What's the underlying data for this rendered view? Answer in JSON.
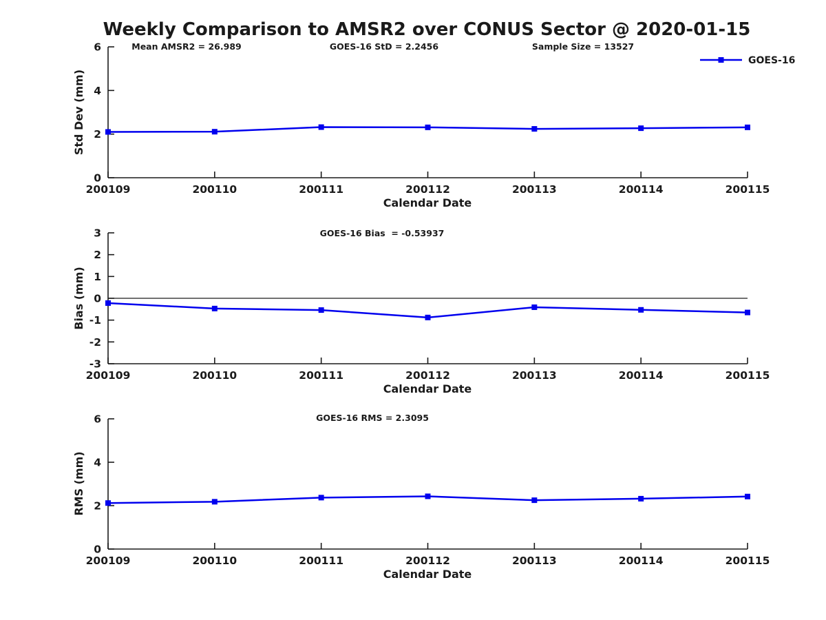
{
  "title": "Weekly Comparison to AMSR2 over CONUS Sector @ 2020-01-15",
  "legend": {
    "label": "GOES-16",
    "color": "#0000EE",
    "position": "top-right-outside"
  },
  "chart_data": [
    {
      "type": "line",
      "annotations": [
        {
          "text": "Mean AMSR2 = 26.989"
        },
        {
          "text": "GOES-16 StD = 2.2456"
        },
        {
          "text": "Sample Size = 13527"
        }
      ],
      "categories": [
        "200109",
        "200110",
        "200111",
        "200112",
        "200113",
        "200114",
        "200115"
      ],
      "series": [
        {
          "name": "GOES-16",
          "color": "#0000EE",
          "marker": "square",
          "values": [
            2.1,
            2.11,
            2.32,
            2.31,
            2.24,
            2.27,
            2.31
          ]
        }
      ],
      "xlabel": "Calendar Date",
      "ylabel": "Std Dev (mm)",
      "ylim": [
        0,
        6
      ],
      "yticks": [
        0,
        2,
        4,
        6
      ],
      "grid": false,
      "zero_line": false,
      "legend_position": "top-right-outside"
    },
    {
      "type": "line",
      "annotations": [
        {
          "text": "GOES-16 Bias  = -0.53937"
        }
      ],
      "categories": [
        "200109",
        "200110",
        "200111",
        "200112",
        "200113",
        "200114",
        "200115"
      ],
      "series": [
        {
          "name": "GOES-16",
          "color": "#0000EE",
          "marker": "square",
          "values": [
            -0.22,
            -0.47,
            -0.54,
            -0.88,
            -0.41,
            -0.53,
            -0.65
          ]
        }
      ],
      "xlabel": "Calendar Date",
      "ylabel": "Bias (mm)",
      "ylim": [
        -3,
        3
      ],
      "yticks": [
        -3,
        -2,
        -1,
        0,
        1,
        2,
        3
      ],
      "grid": false,
      "zero_line": true,
      "legend_position": "none"
    },
    {
      "type": "line",
      "annotations": [
        {
          "text": "GOES-16 RMS = 2.3095"
        }
      ],
      "categories": [
        "200109",
        "200110",
        "200111",
        "200112",
        "200113",
        "200114",
        "200115"
      ],
      "series": [
        {
          "name": "GOES-16",
          "color": "#0000EE",
          "marker": "square",
          "values": [
            2.12,
            2.18,
            2.37,
            2.43,
            2.25,
            2.32,
            2.42
          ]
        }
      ],
      "xlabel": "Calendar Date",
      "ylabel": "RMS (mm)",
      "ylim": [
        0,
        6
      ],
      "yticks": [
        0,
        2,
        4,
        6
      ],
      "grid": false,
      "zero_line": false,
      "legend_position": "none"
    }
  ]
}
